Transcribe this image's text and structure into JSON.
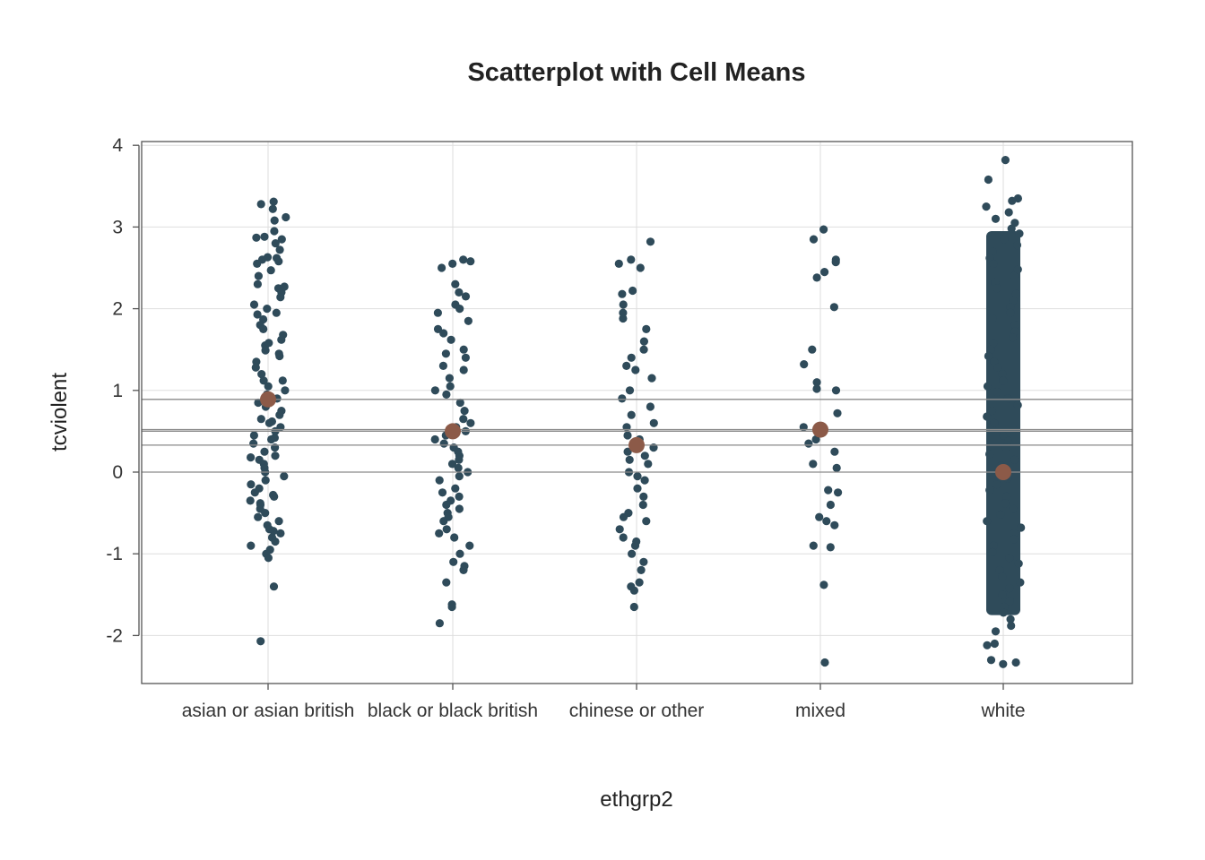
{
  "chart_data": {
    "type": "scatter",
    "title": "Scatterplot with Cell Means",
    "xlabel": "ethgrp2",
    "ylabel": "tcviolent",
    "categories": [
      "asian or asian british",
      "black or black british",
      "chinese or other",
      "mixed",
      "white"
    ],
    "ylim": [
      -2.6,
      4.05
    ],
    "yticks": [
      -2,
      -1,
      0,
      1,
      2,
      3,
      4
    ],
    "grid": true,
    "colors": {
      "points": "#2f4b5a",
      "means": "#8c5a48",
      "reference_lines": "#8a8a8a",
      "grid": "#dedede",
      "frame": "#555555"
    },
    "means": [
      {
        "category": "asian or asian british",
        "value": 0.89
      },
      {
        "category": "black or black british",
        "value": 0.5
      },
      {
        "category": "chinese or other",
        "value": 0.33
      },
      {
        "category": "mixed",
        "value": 0.52
      },
      {
        "category": "white",
        "value": 0.0
      }
    ],
    "reference_lines": [
      0.89,
      0.52,
      0.5,
      0.33,
      0.0
    ],
    "series": [
      {
        "category": "asian or asian british",
        "values": [
          3.31,
          3.28,
          3.22,
          3.12,
          3.08,
          2.95,
          2.87,
          2.85,
          2.8,
          2.72,
          2.62,
          2.6,
          2.58,
          2.55,
          2.47,
          2.4,
          2.3,
          2.25,
          2.2,
          2.14,
          2.05,
          2.0,
          1.95,
          1.87,
          1.8,
          1.75,
          1.68,
          1.62,
          1.55,
          1.49,
          1.42,
          1.35,
          1.28,
          1.2,
          1.12,
          1.05,
          1.0,
          0.95,
          0.9,
          0.85,
          0.8,
          0.75,
          0.7,
          0.65,
          0.6,
          0.55,
          0.5,
          0.45,
          0.4,
          0.35,
          0.3,
          0.25,
          0.2,
          0.15,
          0.1,
          0.05,
          0.0,
          -0.05,
          -0.1,
          -0.15,
          -0.2,
          -0.25,
          -0.3,
          -0.35,
          -0.4,
          -0.45,
          -0.5,
          -0.55,
          -0.6,
          -0.65,
          -0.7,
          -0.75,
          -0.8,
          -0.85,
          -0.9,
          -0.95,
          -1.0,
          -1.05,
          -1.4,
          -2.07,
          2.63,
          2.27,
          1.93,
          1.58,
          1.12,
          0.62,
          0.18,
          -0.28,
          -0.72,
          2.88,
          1.45,
          0.42,
          -0.38
        ]
      },
      {
        "category": "black or black british",
        "values": [
          2.6,
          2.58,
          2.55,
          2.5,
          2.3,
          2.2,
          2.15,
          2.05,
          2.0,
          1.95,
          1.85,
          1.75,
          1.7,
          1.62,
          1.5,
          1.45,
          1.4,
          1.3,
          1.25,
          1.15,
          1.05,
          1.0,
          0.95,
          0.85,
          0.75,
          0.65,
          0.6,
          0.55,
          0.5,
          0.45,
          0.4,
          0.35,
          0.3,
          0.25,
          0.2,
          0.15,
          0.1,
          0.05,
          0.0,
          -0.05,
          -0.1,
          -0.2,
          -0.25,
          -0.3,
          -0.35,
          -0.4,
          -0.45,
          -0.5,
          -0.55,
          -0.6,
          -0.7,
          -0.75,
          -0.8,
          -0.9,
          -1.0,
          -1.1,
          -1.15,
          -1.2,
          -1.35,
          -1.62,
          -1.65,
          -1.85
        ]
      },
      {
        "category": "chinese or other",
        "values": [
          2.82,
          2.6,
          2.55,
          2.5,
          2.22,
          2.18,
          2.05,
          1.95,
          1.88,
          1.75,
          1.6,
          1.5,
          1.4,
          1.3,
          1.25,
          1.15,
          1.0,
          0.9,
          0.8,
          0.7,
          0.6,
          0.55,
          0.45,
          0.4,
          0.3,
          0.25,
          0.2,
          0.15,
          0.1,
          0.0,
          -0.05,
          -0.1,
          -0.2,
          -0.3,
          -0.4,
          -0.5,
          -0.55,
          -0.6,
          -0.7,
          -0.8,
          -0.85,
          -0.9,
          -1.0,
          -1.1,
          -1.2,
          -1.35,
          -1.4,
          -1.45,
          -1.65
        ]
      },
      {
        "category": "mixed",
        "values": [
          2.97,
          2.85,
          2.6,
          2.57,
          2.45,
          2.38,
          2.02,
          1.5,
          1.32,
          1.1,
          1.02,
          1.0,
          0.72,
          0.55,
          0.5,
          0.4,
          0.35,
          0.25,
          0.1,
          0.05,
          -0.22,
          -0.25,
          -0.4,
          -0.55,
          -0.6,
          -0.65,
          -0.9,
          -0.92,
          -1.38,
          -2.33
        ]
      },
      {
        "category": "white",
        "values": [
          3.82,
          3.58,
          3.35,
          3.32,
          3.25,
          3.18,
          3.1,
          3.05,
          2.98,
          2.92,
          2.85,
          2.78,
          2.7,
          2.62,
          2.55,
          2.48,
          2.4,
          2.32,
          2.25,
          2.18,
          2.1,
          2.02,
          1.95,
          1.88,
          1.8,
          1.72,
          1.65,
          1.58,
          1.5,
          1.42,
          1.35,
          1.28,
          1.2,
          1.12,
          1.05,
          0.98,
          0.9,
          0.82,
          0.75,
          0.68,
          0.6,
          0.52,
          0.45,
          0.38,
          0.3,
          0.22,
          0.15,
          0.08,
          0.0,
          -0.08,
          -0.15,
          -0.22,
          -0.3,
          -0.38,
          -0.45,
          -0.52,
          -0.6,
          -0.68,
          -0.75,
          -0.82,
          -0.9,
          -0.98,
          -1.05,
          -1.12,
          -1.2,
          -1.28,
          -1.35,
          -1.42,
          -1.5,
          -1.58,
          -1.65,
          -1.72,
          -1.8,
          -1.88,
          -1.95,
          -2.1,
          -2.12,
          -2.3,
          -2.33,
          -2.35
        ]
      }
    ]
  }
}
